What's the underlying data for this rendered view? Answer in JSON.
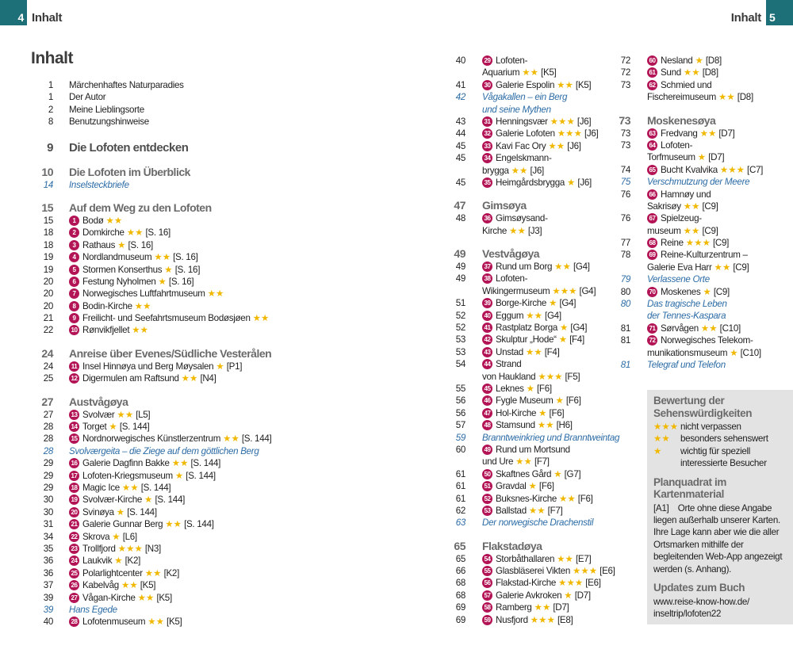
{
  "header": {
    "left_num": "4",
    "left_title": "Inhalt",
    "right_title": "Inhalt",
    "right_num": "5"
  },
  "title": "Inhalt",
  "columns": [
    [
      {
        "page": "1",
        "text": "Märchenhaftes Naturparadies"
      },
      {
        "page": "1",
        "text": "Der Autor"
      },
      {
        "page": "2",
        "text": "Meine Lieblingsorte"
      },
      {
        "page": "8",
        "text": "Benutzungshinweise"
      },
      {
        "page": "9",
        "heading": "Die Lofoten entdecken"
      },
      {
        "page": "10",
        "heading": "Die Lofoten im Überblick"
      },
      {
        "page": "14",
        "note": "Inselsteckbriefe"
      },
      {
        "page": "15",
        "heading": "Auf dem Weg zu den Lofoten"
      },
      {
        "page": "15",
        "num": "1",
        "text": "Bodø",
        "stars": "★★"
      },
      {
        "page": "18",
        "num": "2",
        "text": "Domkirche",
        "stars": "★★",
        "ref": "[S. 16]"
      },
      {
        "page": "18",
        "num": "3",
        "text": "Rathaus",
        "stars": "★",
        "ref": "[S. 16]"
      },
      {
        "page": "19",
        "num": "4",
        "text": "Nordlandmuseum",
        "stars": "★★",
        "ref": "[S. 16]"
      },
      {
        "page": "19",
        "num": "5",
        "text": "Stormen Konserthus",
        "stars": "★",
        "ref": "[S. 16]"
      },
      {
        "page": "20",
        "num": "6",
        "text": "Festung Nyholmen",
        "stars": "★",
        "ref": "[S. 16]"
      },
      {
        "page": "20",
        "num": "7",
        "text": "Norwegisches Luftfahrtmuseum",
        "stars": "★★"
      },
      {
        "page": "20",
        "num": "8",
        "text": "Bodin-Kirche",
        "stars": "★★"
      },
      {
        "page": "21",
        "num": "9",
        "text": "Freilicht- und Seefahrtsmuseum Bodøsjøen",
        "stars": "★★"
      },
      {
        "page": "22",
        "num": "10",
        "text": "Rønvikfjellet",
        "stars": "★★"
      },
      {
        "page": "24",
        "heading": "Anreise über Evenes/Südliche Vesterålen"
      },
      {
        "page": "24",
        "num": "11",
        "text": "Insel Hinnøya und Berg Møysalen",
        "stars": "★",
        "ref": "[P1]"
      },
      {
        "page": "25",
        "num": "12",
        "text": "Digermulen am Raftsund",
        "stars": "★★",
        "ref": "[N4]"
      },
      {
        "page": "27",
        "heading": "Austvågøya"
      },
      {
        "page": "27",
        "num": "13",
        "text": "Svolvær",
        "stars": "★★",
        "ref": "[L5]"
      },
      {
        "page": "28",
        "num": "14",
        "text": "Torget",
        "stars": "★",
        "ref": "[S. 144]"
      },
      {
        "page": "28",
        "num": "15",
        "text": "Nordnorwegisches Künstlerzentrum",
        "stars": "★★",
        "ref": "[S. 144]"
      },
      {
        "page": "28",
        "note": "Svolværgeita – die Ziege auf dem göttlichen Berg"
      },
      {
        "page": "29",
        "num": "16",
        "text": "Galerie Dagfinn Bakke",
        "stars": "★★",
        "ref": "[S. 144]"
      },
      {
        "page": "29",
        "num": "17",
        "text": "Lofoten-Kriegsmuseum",
        "stars": "★",
        "ref": "[S. 144]"
      },
      {
        "page": "29",
        "num": "18",
        "text": "Magic Ice",
        "stars": "★★",
        "ref": "[S. 144]"
      },
      {
        "page": "30",
        "num": "19",
        "text": "Svolvær-Kirche",
        "stars": "★",
        "ref": "[S. 144]"
      },
      {
        "page": "30",
        "num": "20",
        "text": "Svinøya",
        "stars": "★",
        "ref": "[S. 144]"
      },
      {
        "page": "31",
        "num": "21",
        "text": "Galerie Gunnar Berg",
        "stars": "★★",
        "ref": "[S. 144]"
      },
      {
        "page": "34",
        "num": "22",
        "text": "Skrova",
        "stars": "★",
        "ref": "[L6]"
      },
      {
        "page": "35",
        "num": "23",
        "text": "Trollfjord",
        "stars": "★★★",
        "ref": "[N3]"
      },
      {
        "page": "36",
        "num": "24",
        "text": "Laukvik",
        "stars": "★",
        "ref": "[K2]"
      },
      {
        "page": "36",
        "num": "25",
        "text": "Polarlightcenter",
        "stars": "★★",
        "ref": "[K2]"
      },
      {
        "page": "37",
        "num": "26",
        "text": "Kabelvåg",
        "stars": "★★",
        "ref": "[K5]"
      },
      {
        "page": "39",
        "num": "27",
        "text": "Vågan-Kirche",
        "stars": "★★",
        "ref": "[K5]"
      },
      {
        "page": "39",
        "note": "Hans Egede"
      },
      {
        "page": "40",
        "num": "28",
        "text": "Lofotenmuseum",
        "stars": "★★",
        "ref": "[K5]"
      }
    ],
    [
      {
        "page": "40",
        "num": "29",
        "text": [
          "Lofoten-",
          "Aquarium"
        ],
        "stars": "★★",
        "ref": "[K5]"
      },
      {
        "page": "41",
        "num": "30",
        "text": "Galerie Espolin",
        "stars": "★★",
        "ref": "[K5]"
      },
      {
        "page": "42",
        "note": [
          "Vågakallen – ein Berg",
          "und seine Mythen"
        ]
      },
      {
        "page": "43",
        "num": "31",
        "text": "Henningsvær",
        "stars": "★★★",
        "ref": "[J6]"
      },
      {
        "page": "44",
        "num": "32",
        "text": "Galerie Lofoten",
        "stars": "★★★",
        "ref": "[J6]"
      },
      {
        "page": "45",
        "num": "33",
        "text": "Kavi Fac Ory",
        "stars": "★★",
        "ref": "[J6]"
      },
      {
        "page": "45",
        "num": "34",
        "text": [
          "Engelskmann-",
          "brygga"
        ],
        "stars": "★★",
        "ref": "[J6]"
      },
      {
        "page": "45",
        "num": "35",
        "text": "Heimgårdsbrygga",
        "stars": "★",
        "ref": "[J6]"
      },
      {
        "page": "47",
        "heading": "Gimsøya"
      },
      {
        "page": "48",
        "num": "36",
        "text": [
          "Gimsøysand-",
          "Kirche"
        ],
        "stars": "★★",
        "ref": "[J3]"
      },
      {
        "page": "49",
        "heading": "Vestvågøya"
      },
      {
        "page": "49",
        "num": "37",
        "text": "Rund um Borg",
        "stars": "★★",
        "ref": "[G4]"
      },
      {
        "page": "49",
        "num": "38",
        "text": [
          "Lofoten-",
          "Wikingermuseum"
        ],
        "stars": "★★★",
        "ref": "[G4]"
      },
      {
        "page": "51",
        "num": "39",
        "text": "Borge-Kirche",
        "stars": "★",
        "ref": "[G4]"
      },
      {
        "page": "52",
        "num": "40",
        "text": "Eggum",
        "stars": "★★",
        "ref": "[G4]"
      },
      {
        "page": "52",
        "num": "41",
        "text": "Rastplatz Borga",
        "stars": "★",
        "ref": "[G4]"
      },
      {
        "page": "53",
        "num": "42",
        "text": "Skulptur „Hode“",
        "stars": "★",
        "ref": "[F4]"
      },
      {
        "page": "53",
        "num": "43",
        "text": "Unstad",
        "stars": "★★",
        "ref": "[F4]"
      },
      {
        "page": "54",
        "num": "44",
        "text": [
          "Strand",
          "von Haukland"
        ],
        "stars": "★★★",
        "ref": "[F5]"
      },
      {
        "page": "55",
        "num": "45",
        "text": "Leknes",
        "stars": "★",
        "ref": "[F6]"
      },
      {
        "page": "56",
        "num": "46",
        "text": "Fygle Museum",
        "stars": "★",
        "ref": "[F6]"
      },
      {
        "page": "56",
        "num": "47",
        "text": "Hol-Kirche",
        "stars": "★",
        "ref": "[F6]"
      },
      {
        "page": "57",
        "num": "48",
        "text": "Stamsund",
        "stars": "★★",
        "ref": "[H6]"
      },
      {
        "page": "59",
        "note": "Branntweinkrieg und Branntweintag"
      },
      {
        "page": "60",
        "num": "49",
        "text": [
          "Rund um Mortsund",
          "und Ure"
        ],
        "stars": "★★",
        "ref": "[F7]"
      },
      {
        "page": "61",
        "num": "50",
        "text": "Skaftnes Gård",
        "stars": "★",
        "ref": "[G7]"
      },
      {
        "page": "61",
        "num": "51",
        "text": "Gravdal",
        "stars": "★",
        "ref": "[F6]"
      },
      {
        "page": "61",
        "num": "52",
        "text": "Buksnes-Kirche",
        "stars": "★★",
        "ref": "[F6]"
      },
      {
        "page": "62",
        "num": "53",
        "text": "Ballstad",
        "stars": "★★",
        "ref": "[F7]"
      },
      {
        "page": "63",
        "note": "Der norwegische Drachenstil"
      },
      {
        "page": "65",
        "heading": "Flakstadøya"
      },
      {
        "page": "65",
        "num": "54",
        "text": "Storbåthallaren",
        "stars": "★★",
        "ref": "[E7]"
      },
      {
        "page": "66",
        "num": "55",
        "text": "Glasbläserei Vikten",
        "stars": "★★★",
        "ref": "[E6]"
      },
      {
        "page": "68",
        "num": "56",
        "text": "Flakstad-Kirche",
        "stars": "★★★",
        "ref": "[E6]"
      },
      {
        "page": "68",
        "num": "57",
        "text": "Galerie Avkroken",
        "stars": "★",
        "ref": "[D7]"
      },
      {
        "page": "69",
        "num": "58",
        "text": "Ramberg",
        "stars": "★★",
        "ref": "[D7]"
      },
      {
        "page": "69",
        "num": "59",
        "text": "Nusfjord",
        "stars": "★★★",
        "ref": "[E8]"
      }
    ],
    [
      {
        "page": "72",
        "num": "60",
        "text": "Nesland",
        "stars": "★",
        "ref": "[D8]"
      },
      {
        "page": "72",
        "num": "61",
        "text": "Sund",
        "stars": "★★",
        "ref": "[D8]"
      },
      {
        "page": "73",
        "num": "62",
        "text": [
          "Schmied und",
          "Fischereimuseum"
        ],
        "stars": "★★",
        "ref": "[D8]"
      },
      {
        "page": "73",
        "heading": "Moskenesøya"
      },
      {
        "page": "73",
        "num": "63",
        "text": "Fredvang",
        "stars": "★★",
        "ref": "[D7]"
      },
      {
        "page": "73",
        "num": "64",
        "text": [
          "Lofoten-",
          "Torfmuseum"
        ],
        "stars": "★",
        "ref": "[D7]"
      },
      {
        "page": "74",
        "num": "65",
        "text": "Bucht Kvalvika",
        "stars": "★★★",
        "ref": "[C7]"
      },
      {
        "page": "75",
        "note": "Verschmutzung der Meere"
      },
      {
        "page": "76",
        "num": "66",
        "text": [
          "Hamnøy und",
          "Sakrisøy"
        ],
        "stars": "★★",
        "ref": "[C9]"
      },
      {
        "page": "76",
        "num": "67",
        "text": [
          "Spielzeug-",
          "museum"
        ],
        "stars": "★★",
        "ref": "[C9]"
      },
      {
        "page": "77",
        "num": "68",
        "text": "Reine",
        "stars": "★★★",
        "ref": "[C9]"
      },
      {
        "page": "78",
        "num": "69",
        "text": [
          "Reine-Kulturzentrum –",
          "Galerie Eva Harr"
        ],
        "stars": "★★",
        "ref": "[C9]"
      },
      {
        "page": "79",
        "note": "Verlassene Orte"
      },
      {
        "page": "80",
        "num": "70",
        "text": "Moskenes",
        "stars": "★",
        "ref": "[C9]"
      },
      {
        "page": "80",
        "note": [
          "Das tragische Leben",
          "der Tennes-Kaspara"
        ]
      },
      {
        "page": "81",
        "num": "71",
        "text": "Sørvågen",
        "stars": "★★",
        "ref": "[C10]"
      },
      {
        "page": "81",
        "num": "72",
        "text": [
          "Norwegisches Telekom-",
          "munikationsmuseum"
        ],
        "stars": "★",
        "ref": "[C10]"
      },
      {
        "page": "81",
        "note": "Telegraf und Telefon"
      }
    ]
  ],
  "sidebar": {
    "rating_title": "Bewertung der Sehenswürdigkeiten",
    "ratings": [
      {
        "stars": "★★★",
        "text": "nicht verpassen"
      },
      {
        "stars": "★★",
        "text": "besonders sehenswert"
      },
      {
        "stars": "★",
        "text": "wichtig für speziell interessierte Besucher"
      }
    ],
    "grid_title": "Planquadrat im Kartenmaterial",
    "grid_code": "[A1]",
    "grid_text": "Orte ohne diese Angabe liegen außerhalb unserer Karten. Ihre Lage kann aber wie die aller Ortsmarken mithilfe der begleitenden Web-App angezeigt werden (s. Anhang).",
    "updates_title": "Updates zum Buch",
    "updates_url": [
      "www.reise-know-how.de/",
      "inseltrip/lofoten22"
    ]
  }
}
